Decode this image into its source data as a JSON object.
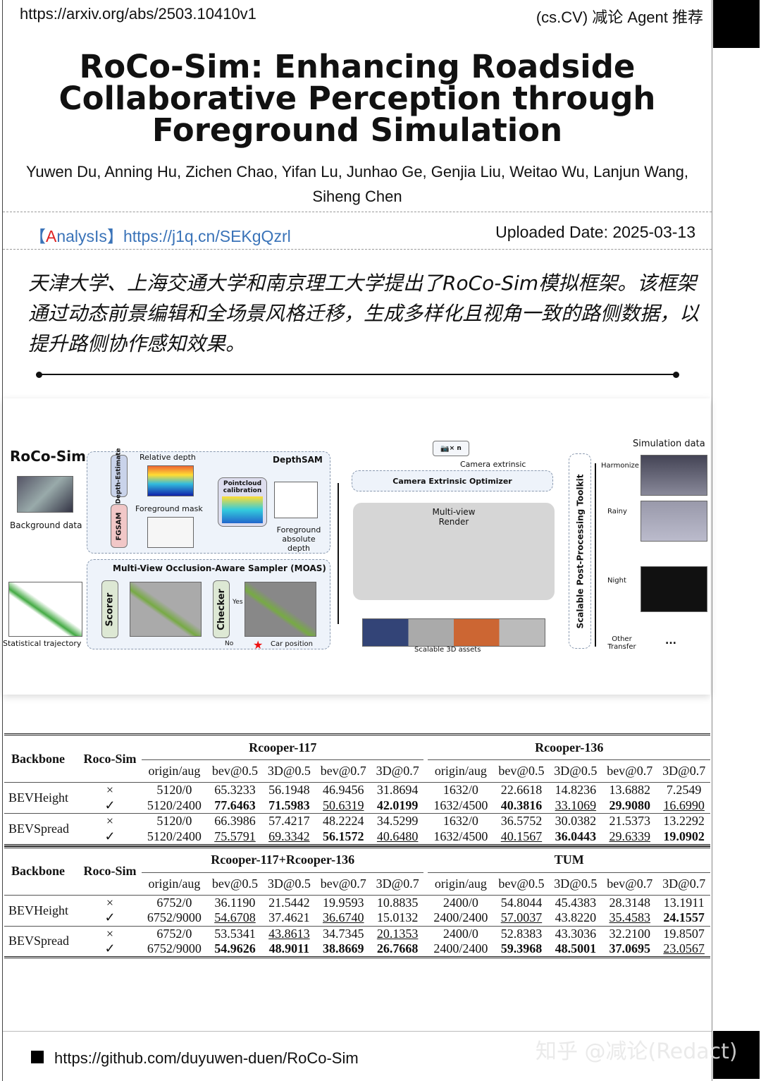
{
  "header": {
    "url": "https://arxiv.org/abs/2503.10410v1",
    "category": "(cs.CV) 减论 Agent 推荐"
  },
  "paper": {
    "title_lines": [
      "RoCo-Sim: Enhancing Roadside",
      "Collaborative Perception through",
      "Foreground Simulation"
    ],
    "authors": "Yuwen Du, Anning Hu, Zichen Chao, Yifan Lu, Junhao Ge, Genjia Liu, Weitao Wu, Lanjun Wang, Siheng Chen"
  },
  "analysis": {
    "open": "【",
    "a": "A",
    "rest": "nalysIs",
    "close": "】",
    "link": "https://j1q.cn/SEKgQzrl",
    "uploaded": "Uploaded Date: 2025-03-13"
  },
  "summary": "天津大学、上海交通大学和南京理工大学提出了RoCo-Sim模拟框架。该框架通过动态前景编辑和全场景风格迁移，生成多样化且视角一致的路侧数据，以提升路侧协作感知效果。",
  "figure": {
    "name": "RoCo-Sim",
    "background": "Background data",
    "depth_estimate": "Depth-Estimate",
    "relative_depth": "Relative depth",
    "depthsam": "DepthSAM",
    "fgsam": "FGSAM",
    "fg_mask": "Foreground mask",
    "pointcloud": "Pointcloud calibration",
    "fg_abs_depth": "Foreground absolute depth",
    "moas": "Multi-View Occlusion-Aware Sampler (MOAS)",
    "stat_traj": "Statistical trajectory",
    "scorer": "Scorer",
    "checker": "Checker",
    "yes": "Yes",
    "no": "No",
    "car_pos": "Car position",
    "camera_n": "× n",
    "camera_extrinsic": "Camera extrinsic",
    "optimizer": "Camera Extrinsic Optimizer",
    "render": "Multi-view Render",
    "assets": "Scalable 3D assets",
    "toolkit": "Scalable Post-Processing Toolkit",
    "sim_data": "Simulation data",
    "harmonize": "Harmonize",
    "rainy": "Rainy",
    "night": "Night",
    "other": "Other Transfer",
    "ellipsis": "..."
  },
  "tables": [
    {
      "group_a": "Rcooper-117",
      "group_b": "Rcooper-136",
      "rows": [
        {
          "backbone": "BEVHeight",
          "mark": "×",
          "values": [
            "5120/0",
            "65.3233",
            "56.1948",
            "46.9456",
            "31.8694",
            "1632/0",
            "22.6618",
            "14.8236",
            "13.6882",
            "7.2549"
          ],
          "styles": [
            "",
            "",
            "",
            "",
            "",
            "",
            "",
            "",
            "",
            ""
          ]
        },
        {
          "backbone": "",
          "mark": "✓",
          "values": [
            "5120/2400",
            "77.6463",
            "71.5983",
            "50.6319",
            "42.0199",
            "1632/4500",
            "40.3816",
            "33.1069",
            "29.9080",
            "16.6990"
          ],
          "styles": [
            "",
            "b",
            "b",
            "u",
            "b",
            "",
            "b",
            "u",
            "b",
            "u"
          ]
        },
        {
          "backbone": "BEVSpread",
          "mark": "×",
          "values": [
            "5120/0",
            "66.3986",
            "57.4217",
            "48.2224",
            "34.5299",
            "1632/0",
            "36.5752",
            "30.0382",
            "21.5373",
            "13.2292"
          ],
          "styles": [
            "",
            "",
            "",
            "",
            "",
            "",
            "",
            "",
            "",
            ""
          ]
        },
        {
          "backbone": "",
          "mark": "✓",
          "values": [
            "5120/2400",
            "75.5791",
            "69.3342",
            "56.1572",
            "40.6480",
            "1632/4500",
            "40.1567",
            "36.0443",
            "29.6339",
            "19.0902"
          ],
          "styles": [
            "",
            "u",
            "u",
            "b",
            "u",
            "",
            "u",
            "b",
            "u",
            "b"
          ]
        }
      ]
    },
    {
      "group_a": "Rcooper-117+Rcooper-136",
      "group_b": "TUM",
      "rows": [
        {
          "backbone": "BEVHeight",
          "mark": "×",
          "values": [
            "6752/0",
            "36.1190",
            "21.5442",
            "19.9593",
            "10.8835",
            "2400/0",
            "54.8044",
            "45.4383",
            "28.3148",
            "13.1911"
          ],
          "styles": [
            "",
            "",
            "",
            "",
            "",
            "",
            "",
            "",
            "",
            ""
          ]
        },
        {
          "backbone": "",
          "mark": "✓",
          "values": [
            "6752/9000",
            "54.6708",
            "37.4621",
            "36.6740",
            "15.0132",
            "2400/2400",
            "57.0037",
            "43.8220",
            "35.4583",
            "24.1557"
          ],
          "styles": [
            "",
            "u",
            "",
            "u",
            "",
            "",
            "u",
            "",
            "u",
            "b"
          ]
        },
        {
          "backbone": "BEVSpread",
          "mark": "×",
          "values": [
            "6752/0",
            "53.5341",
            "43.8613",
            "34.7345",
            "20.1353",
            "2400/0",
            "52.8383",
            "43.3036",
            "32.2100",
            "19.8507"
          ],
          "styles": [
            "",
            "",
            "u",
            "",
            "u",
            "",
            "",
            "",
            "",
            ""
          ]
        },
        {
          "backbone": "",
          "mark": "✓",
          "values": [
            "6752/9000",
            "54.9626",
            "48.9011",
            "38.8669",
            "26.7668",
            "2400/2400",
            "59.3968",
            "48.5001",
            "37.0695",
            "23.0567"
          ],
          "styles": [
            "",
            "b",
            "b",
            "b",
            "b",
            "",
            "b",
            "b",
            "b",
            "u"
          ]
        }
      ]
    }
  ],
  "table_headers": {
    "backbone": "Backbone",
    "rocosim": "Roco-Sim",
    "cols": [
      "origin/aug",
      "bev@0.5",
      "3D@0.5",
      "bev@0.7",
      "3D@0.7",
      "origin/aug",
      "bev@0.5",
      "3D@0.5",
      "bev@0.7",
      "3D@0.7"
    ]
  },
  "footer": {
    "link": "https://github.com/duyuwen-duen/RoCo-Sim",
    "watermark": "知乎 @减论(Redact)"
  }
}
